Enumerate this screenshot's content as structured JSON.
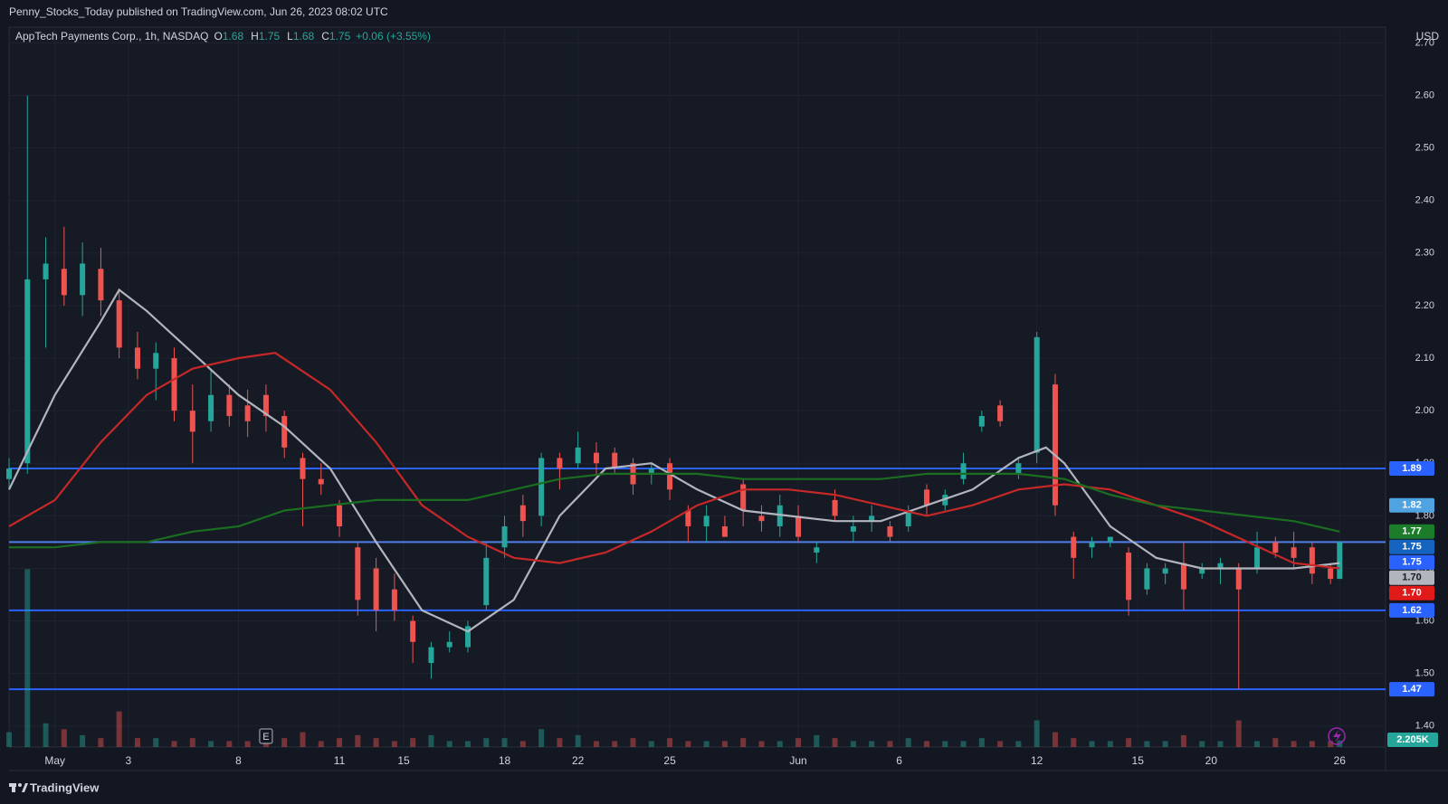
{
  "header": {
    "publisher": "Penny_Stocks_Today published on TradingView.com, Jun 26, 2023 08:02 UTC"
  },
  "chart_data": {
    "type": "candlestick",
    "title": "AppTech Payments Corp., 1h, NASDAQ",
    "ohlc_labels": [
      "O",
      "H",
      "L",
      "C"
    ],
    "change": "+0.06 (+3.55%)",
    "currency": "USD",
    "up_color": "#26a69a",
    "down_color": "#ef5350",
    "grid": true,
    "x": [
      0,
      2,
      4,
      6,
      8,
      10,
      12,
      14,
      16,
      18,
      20,
      22,
      24,
      26,
      28,
      30,
      32,
      34,
      36,
      38,
      40,
      42,
      44,
      46,
      48,
      50,
      52,
      54,
      56,
      58,
      60,
      62,
      64,
      66,
      68,
      70,
      72,
      74,
      76,
      78,
      80,
      82,
      84,
      86,
      88,
      90,
      92,
      94,
      96,
      98,
      100,
      102,
      104,
      106,
      108,
      110,
      112,
      114,
      116,
      118,
      120,
      122,
      124,
      126,
      128,
      130,
      132,
      134,
      136,
      138,
      140,
      142,
      144,
      145
    ],
    "open": [
      1.87,
      1.9,
      2.25,
      2.27,
      2.22,
      2.27,
      2.21,
      2.12,
      2.08,
      2.1,
      2.0,
      1.98,
      2.03,
      2.01,
      2.03,
      1.99,
      1.91,
      1.87,
      1.82,
      1.74,
      1.7,
      1.66,
      1.6,
      1.52,
      1.55,
      1.55,
      1.63,
      1.74,
      1.82,
      1.8,
      1.91,
      1.9,
      1.92,
      1.92,
      1.9,
      1.88,
      1.9,
      1.81,
      1.78,
      1.78,
      1.86,
      1.8,
      1.78,
      1.8,
      1.73,
      1.83,
      1.77,
      1.79,
      1.78,
      1.78,
      1.85,
      1.82,
      1.87,
      1.97,
      2.01,
      1.88,
      1.92,
      2.05,
      1.76,
      1.74,
      1.75,
      1.73,
      1.66,
      1.69,
      1.71,
      1.69,
      1.7,
      1.7,
      1.7,
      1.75,
      1.74,
      1.74,
      1.7,
      1.68
    ],
    "high": [
      1.91,
      2.6,
      2.33,
      2.35,
      2.32,
      2.31,
      2.23,
      2.15,
      2.13,
      2.12,
      2.05,
      2.08,
      2.05,
      2.04,
      2.05,
      2.0,
      1.92,
      1.9,
      1.83,
      1.75,
      1.72,
      1.69,
      1.61,
      1.56,
      1.58,
      1.6,
      1.75,
      1.8,
      1.84,
      1.92,
      1.92,
      1.96,
      1.94,
      1.93,
      1.91,
      1.9,
      1.91,
      1.82,
      1.82,
      1.8,
      1.87,
      1.82,
      1.84,
      1.82,
      1.75,
      1.85,
      1.8,
      1.82,
      1.79,
      1.82,
      1.86,
      1.85,
      1.92,
      2.0,
      2.02,
      1.91,
      2.15,
      2.07,
      1.77,
      1.76,
      1.76,
      1.74,
      1.71,
      1.71,
      1.75,
      1.71,
      1.72,
      1.71,
      1.77,
      1.76,
      1.77,
      1.75,
      1.71,
      1.75
    ],
    "low": [
      1.85,
      1.88,
      2.12,
      2.2,
      2.18,
      2.18,
      2.1,
      2.06,
      2.02,
      1.98,
      1.9,
      1.96,
      1.97,
      1.95,
      1.96,
      1.91,
      1.78,
      1.84,
      1.76,
      1.61,
      1.58,
      1.6,
      1.52,
      1.49,
      1.54,
      1.54,
      1.62,
      1.72,
      1.76,
      1.78,
      1.85,
      1.89,
      1.88,
      1.88,
      1.84,
      1.86,
      1.83,
      1.75,
      1.75,
      1.76,
      1.78,
      1.77,
      1.76,
      1.75,
      1.71,
      1.79,
      1.75,
      1.77,
      1.75,
      1.77,
      1.8,
      1.81,
      1.86,
      1.96,
      1.97,
      1.87,
      1.9,
      1.8,
      1.68,
      1.72,
      1.74,
      1.61,
      1.65,
      1.67,
      1.62,
      1.68,
      1.67,
      1.47,
      1.69,
      1.72,
      1.7,
      1.67,
      1.67,
      1.68
    ],
    "close": [
      1.89,
      2.25,
      2.28,
      2.22,
      2.28,
      2.21,
      2.12,
      2.08,
      2.11,
      2.0,
      1.96,
      2.03,
      1.99,
      1.98,
      1.99,
      1.93,
      1.87,
      1.86,
      1.78,
      1.64,
      1.62,
      1.62,
      1.56,
      1.55,
      1.56,
      1.59,
      1.72,
      1.78,
      1.79,
      1.91,
      1.89,
      1.93,
      1.9,
      1.89,
      1.86,
      1.89,
      1.85,
      1.78,
      1.8,
      1.76,
      1.81,
      1.79,
      1.82,
      1.76,
      1.74,
      1.8,
      1.78,
      1.8,
      1.76,
      1.81,
      1.82,
      1.84,
      1.9,
      1.99,
      1.98,
      1.9,
      2.14,
      1.82,
      1.72,
      1.75,
      1.76,
      1.64,
      1.7,
      1.7,
      1.66,
      1.7,
      1.71,
      1.66,
      1.74,
      1.73,
      1.72,
      1.69,
      1.68,
      1.75
    ],
    "volume": [
      5,
      60,
      8,
      6,
      4,
      3,
      12,
      3,
      3,
      2,
      3,
      2,
      2,
      2,
      4,
      3,
      5,
      2,
      3,
      4,
      3,
      2,
      3,
      4,
      2,
      2,
      3,
      3,
      2,
      6,
      3,
      4,
      2,
      2,
      3,
      2,
      3,
      2,
      2,
      2,
      3,
      2,
      2,
      3,
      4,
      3,
      2,
      2,
      2,
      3,
      2,
      2,
      2,
      3,
      2,
      2,
      9,
      5,
      3,
      2,
      2,
      3,
      2,
      2,
      4,
      2,
      2,
      9,
      2,
      3,
      2,
      2,
      2,
      2.205
    ],
    "volume_lim": [
      0,
      61
    ],
    "volume_value_label": "2.205K",
    "xlim": [
      0,
      150
    ],
    "xticks": [
      {
        "value": 5,
        "label": "May"
      },
      {
        "value": 13,
        "label": "3"
      },
      {
        "value": 25,
        "label": "8"
      },
      {
        "value": 36,
        "label": "11"
      },
      {
        "value": 43,
        "label": "15"
      },
      {
        "value": 54,
        "label": "18"
      },
      {
        "value": 62,
        "label": "22"
      },
      {
        "value": 72,
        "label": "25"
      },
      {
        "value": 86,
        "label": "Jun"
      },
      {
        "value": 97,
        "label": "6"
      },
      {
        "value": 112,
        "label": "12"
      },
      {
        "value": 123,
        "label": "15"
      },
      {
        "value": 131,
        "label": "20"
      },
      {
        "value": 145,
        "label": "26"
      }
    ],
    "ylim": [
      1.36,
      2.73
    ],
    "yticks": [
      {
        "value": 1.4,
        "label": "1.40"
      },
      {
        "value": 1.5,
        "label": "1.50"
      },
      {
        "value": 1.6,
        "label": "1.60"
      },
      {
        "value": 1.7,
        "label": "1.70"
      },
      {
        "value": 1.8,
        "label": "1.80"
      },
      {
        "value": 1.9,
        "label": "1.90"
      },
      {
        "value": 2.0,
        "label": "2.00"
      },
      {
        "value": 2.1,
        "label": "2.10"
      },
      {
        "value": 2.2,
        "label": "2.20"
      },
      {
        "value": 2.3,
        "label": "2.30"
      },
      {
        "value": 2.4,
        "label": "2.40"
      },
      {
        "value": 2.5,
        "label": "2.50"
      },
      {
        "value": 2.6,
        "label": "2.60"
      },
      {
        "value": 2.7,
        "label": "2.70"
      }
    ],
    "overlays": [
      {
        "color": "#b2b5be",
        "x": [
          0,
          5,
          10,
          12,
          15,
          20,
          25,
          30,
          35,
          40,
          45,
          50,
          55,
          60,
          65,
          70,
          75,
          80,
          85,
          90,
          95,
          100,
          105,
          110,
          113,
          115,
          120,
          125,
          130,
          135,
          140,
          145
        ],
        "values": [
          1.85,
          2.03,
          2.17,
          2.23,
          2.19,
          2.11,
          2.03,
          1.97,
          1.89,
          1.75,
          1.62,
          1.58,
          1.64,
          1.8,
          1.89,
          1.9,
          1.85,
          1.81,
          1.8,
          1.79,
          1.79,
          1.82,
          1.85,
          1.91,
          1.93,
          1.9,
          1.78,
          1.72,
          1.7,
          1.7,
          1.7,
          1.71
        ]
      },
      {
        "color": "#c62828",
        "x": [
          0,
          5,
          10,
          15,
          20,
          25,
          29,
          35,
          40,
          45,
          50,
          55,
          60,
          65,
          70,
          75,
          80,
          85,
          90,
          95,
          100,
          105,
          110,
          115,
          120,
          125,
          130,
          135,
          140,
          145
        ],
        "values": [
          1.78,
          1.83,
          1.94,
          2.03,
          2.08,
          2.1,
          2.11,
          2.04,
          1.94,
          1.82,
          1.76,
          1.72,
          1.71,
          1.73,
          1.77,
          1.82,
          1.85,
          1.85,
          1.84,
          1.82,
          1.8,
          1.82,
          1.85,
          1.86,
          1.85,
          1.82,
          1.79,
          1.75,
          1.71,
          1.7
        ]
      },
      {
        "color": "#1b6e20",
        "x": [
          0,
          5,
          10,
          15,
          20,
          25,
          30,
          35,
          40,
          45,
          50,
          55,
          60,
          65,
          70,
          75,
          80,
          85,
          90,
          95,
          100,
          105,
          110,
          115,
          120,
          125,
          130,
          135,
          140,
          145
        ],
        "values": [
          1.74,
          1.74,
          1.75,
          1.75,
          1.77,
          1.78,
          1.81,
          1.82,
          1.83,
          1.83,
          1.83,
          1.85,
          1.87,
          1.88,
          1.88,
          1.88,
          1.87,
          1.87,
          1.87,
          1.87,
          1.88,
          1.88,
          1.88,
          1.87,
          1.84,
          1.82,
          1.81,
          1.8,
          1.79,
          1.77
        ]
      }
    ],
    "hlines": [
      {
        "value": 1.89,
        "color": "#2962ff"
      },
      {
        "value": 1.75,
        "color": "#4f7fe8"
      },
      {
        "value": 1.62,
        "color": "#2962ff"
      },
      {
        "value": 1.47,
        "color": "#2962ff"
      }
    ],
    "price_labels": [
      {
        "value": 1.89,
        "color": "#2962ff"
      },
      {
        "value": 1.82,
        "color": "#4fa3e0"
      },
      {
        "value": 1.77,
        "color": "#1b7d2a"
      },
      {
        "value": 1.75,
        "color": "#1565c0"
      },
      {
        "value": 1.75,
        "color": "#2962ff"
      },
      {
        "value": 1.7,
        "label": "1.70",
        "color": "#b2b5be"
      },
      {
        "value": 1.7,
        "label": "1.70",
        "color": "#e01919"
      },
      {
        "value": 1.62,
        "color": "#2962ff"
      },
      {
        "value": 1.47,
        "color": "#2962ff"
      }
    ],
    "events": [
      {
        "x": 28,
        "label": "E"
      }
    ]
  },
  "footer": {
    "brand": "TradingView"
  }
}
